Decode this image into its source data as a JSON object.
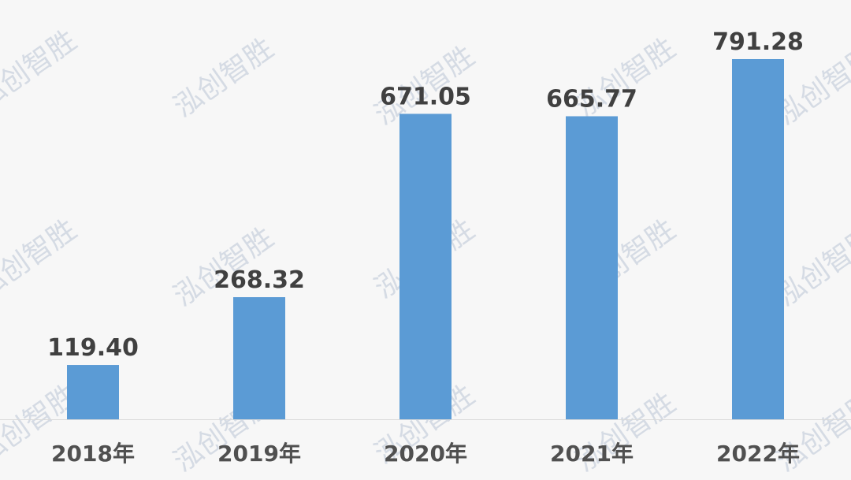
{
  "chart_data": {
    "type": "bar",
    "categories": [
      "2018年",
      "2019年",
      "2020年",
      "2021年",
      "2022年"
    ],
    "values": [
      119.4,
      268.32,
      671.05,
      665.77,
      791.28
    ],
    "data_labels": [
      "119.40",
      "268.32",
      "671.05",
      "665.77",
      "791.28"
    ],
    "title": "",
    "xlabel": "",
    "ylabel": "",
    "ylim": [
      0,
      791.28
    ],
    "grid": false,
    "bar_color": "#5b9bd5",
    "axis_color": "#d9d9d9",
    "label_color": "#404040"
  },
  "watermark": "泓创智胜"
}
